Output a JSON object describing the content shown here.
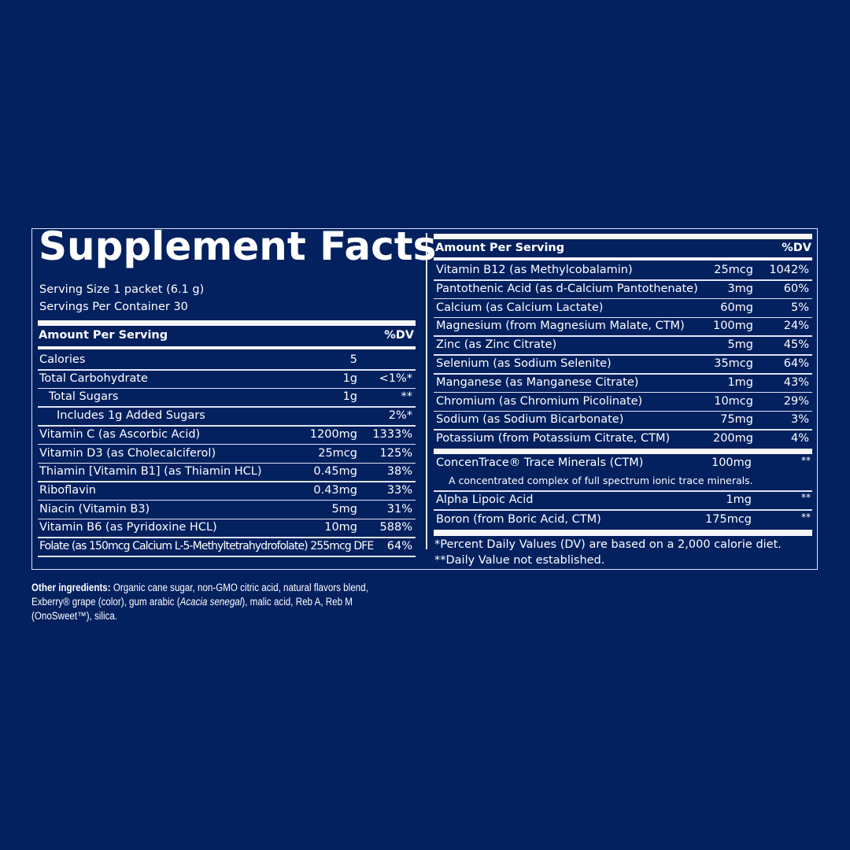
{
  "title": "Supplement Facts",
  "serving_size": "Serving Size 1 packet (6.1 g)",
  "servings_per_container": "Servings Per Container 30",
  "header": {
    "amount_label": "Amount Per Serving",
    "dv_label": "%DV"
  },
  "left_rows": [
    {
      "name": "Calories",
      "amount": "5",
      "dv": "",
      "indent": 0
    },
    {
      "name": "Total Carbohydrate",
      "amount": "1g",
      "dv": "<1%*",
      "indent": 0
    },
    {
      "name": "Total Sugars",
      "amount": "1g",
      "dv": "**",
      "indent": 1
    },
    {
      "name": "Includes 1g Added Sugars",
      "amount": "",
      "dv": "2%*",
      "indent": 2
    },
    {
      "name": "Vitamin C (as Ascorbic Acid)",
      "amount": "1200mg",
      "dv": "1333%",
      "indent": 0
    },
    {
      "name": "Vitamin D3 (as Cholecalciferol)",
      "amount": "25mcg",
      "dv": "125%",
      "indent": 0
    },
    {
      "name": "Thiamin [Vitamin B1] (as Thiamin HCL)",
      "amount": "0.45mg",
      "dv": "38%",
      "indent": 0
    },
    {
      "name": "Riboflavin",
      "amount": "0.43mg",
      "dv": "33%",
      "indent": 0
    },
    {
      "name": "Niacin (Vitamin B3)",
      "amount": "5mg",
      "dv": "31%",
      "indent": 0
    },
    {
      "name": "Vitamin B6 (as Pyridoxine HCL)",
      "amount": "10mg",
      "dv": "588%",
      "indent": 0
    },
    {
      "name": "Folate (as 150mcg Calcium L-5-Methyltetrahydrofolate) 255mcg DFE",
      "amount": "",
      "dv": "64%",
      "indent": 0,
      "condensed": true
    }
  ],
  "right_rows": [
    {
      "name": "Vitamin B12 (as Methylcobalamin)",
      "amount": "25mcg",
      "dv": "1042%"
    },
    {
      "name": "Pantothenic Acid (as d-Calcium Pantothenate)",
      "amount": "3mg",
      "dv": "60%"
    },
    {
      "name": "Calcium (as Calcium Lactate)",
      "amount": "60mg",
      "dv": "5%"
    },
    {
      "name": "Magnesium (from Magnesium Malate, CTM)",
      "amount": "100mg",
      "dv": "24%"
    },
    {
      "name": "Zinc (as Zinc Citrate)",
      "amount": "5mg",
      "dv": "45%"
    },
    {
      "name": "Selenium (as Sodium Selenite)",
      "amount": "35mcg",
      "dv": "64%"
    },
    {
      "name": "Manganese (as Manganese Citrate)",
      "amount": "1mg",
      "dv": "43%"
    },
    {
      "name": "Chromium (as Chromium Picolinate)",
      "amount": "10mcg",
      "dv": "29%"
    },
    {
      "name": "Sodium (as Sodium Bicarbonate)",
      "amount": "75mg",
      "dv": "3%"
    },
    {
      "name": "Potassium (from Potassium Citrate, CTM)",
      "amount": "200mg",
      "dv": "4%"
    }
  ],
  "other_rows": [
    {
      "name": "ConcenTrace® Trace Minerals (CTM)",
      "amount": "100mg",
      "dv": "**",
      "note": "A concentrated complex of full spectrum ionic trace minerals."
    },
    {
      "name": "Alpha Lipoic Acid",
      "amount": "1mg",
      "dv": "**"
    },
    {
      "name": "Boron (from Boric Acid, CTM)",
      "amount": "175mcg",
      "dv": "**"
    }
  ],
  "footnotes": [
    "*Percent Daily Values (DV) are based on a 2,000 calorie diet.",
    "**Daily Value not established."
  ],
  "other_ingredients": {
    "label": "Other ingredients:",
    "text1": " Organic cane sugar, non-GMO citric acid, natural flavors blend, Exberry® grape (color), gum arabic (",
    "italic": "Acacia senegal",
    "text2": "), malic acid, Reb A, Reb M (OnoSweet™), silica."
  }
}
